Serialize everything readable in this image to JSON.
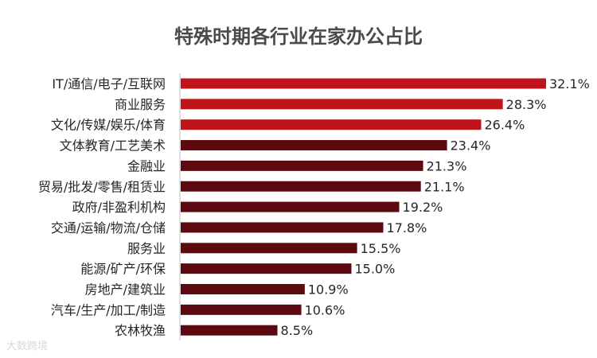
{
  "chart_data": {
    "type": "bar",
    "orientation": "horizontal",
    "title": "特殊时期各行业在家办公占比",
    "xlabel": "",
    "ylabel": "",
    "xlim": [
      0,
      32.1
    ],
    "grid": false,
    "categories": [
      "IT/通信/电子/互联网",
      "商业服务",
      "文化/传媒/娱乐/体育",
      "文体教育/工艺美术",
      "金融业",
      "贸易/批发/零售/租赁业",
      "政府/非盈利机构",
      "交通/运输/物流/仓储",
      "服务业",
      "能源/矿产/环保",
      "房地产/建筑业",
      "汽车/生产/加工/制造",
      "农林牧渔"
    ],
    "values": [
      32.1,
      28.3,
      26.4,
      23.4,
      21.3,
      21.1,
      19.2,
      17.8,
      15.5,
      15.0,
      10.9,
      10.6,
      8.5
    ],
    "value_labels": [
      "32.1%",
      "28.3%",
      "26.4%",
      "23.4%",
      "21.3%",
      "21.1%",
      "19.2%",
      "17.8%",
      "15.5%",
      "15.0%",
      "10.9%",
      "10.6%",
      "8.5%"
    ],
    "colors": {
      "highlight": "#c0141b",
      "default": "#5c0a0f",
      "highlight_count": 3
    }
  },
  "watermark": "大数跨境"
}
